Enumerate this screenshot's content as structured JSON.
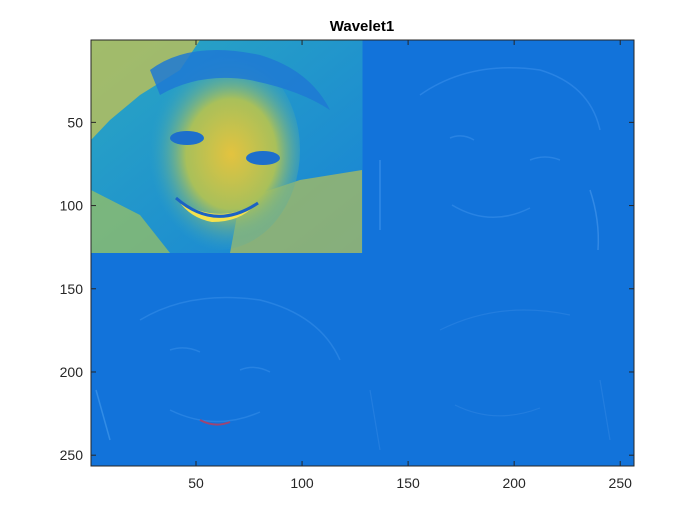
{
  "chart_data": {
    "type": "heatmap",
    "title": "Wavelet1",
    "xlabel": "",
    "ylabel": "",
    "xlim": [
      0.5,
      256.5
    ],
    "ylim": [
      0.5,
      256.5
    ],
    "y_reversed": true,
    "grid": false,
    "colormap": "parula",
    "x_ticks": [
      50,
      100,
      150,
      200,
      250
    ],
    "y_ticks": [
      50,
      100,
      150,
      200,
      250
    ],
    "x_tick_labels": [
      "50",
      "100",
      "150",
      "200",
      "250"
    ],
    "y_tick_labels": [
      "50",
      "100",
      "150",
      "200",
      "250"
    ],
    "quadrants": [
      {
        "name": "approximation",
        "x_range": [
          1,
          128
        ],
        "y_range": [
          1,
          128
        ]
      },
      {
        "name": "horizontal-detail",
        "x_range": [
          129,
          256
        ],
        "y_range": [
          1,
          128
        ]
      },
      {
        "name": "vertical-detail",
        "x_range": [
          1,
          128
        ],
        "y_range": [
          129,
          256
        ]
      },
      {
        "name": "diagonal-detail",
        "x_range": [
          129,
          256
        ],
        "y_range": [
          129,
          256
        ]
      }
    ],
    "colors": {
      "detail_background": "#1273DA",
      "approx_low": "#1C8FD4",
      "approx_mid": "#2DB9A8",
      "approx_high": "#F2C23A",
      "axis": "#262626"
    }
  }
}
